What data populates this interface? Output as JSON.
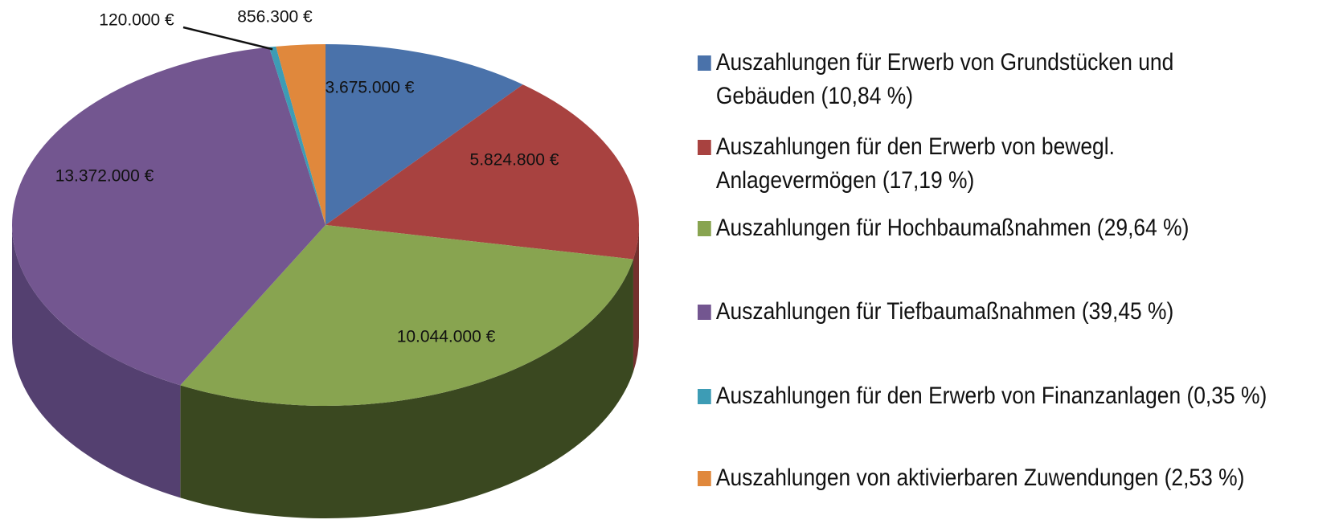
{
  "chart_data": {
    "type": "pie",
    "categories": [
      "Auszahlungen für Erwerb von Grundstücken und Gebäuden (10,84 %)",
      "Auszahlungen für den Erwerb von bewegl. Anlagevermögen (17,19 %)",
      "Auszahlungen für Hochbaumaßnahmen (29,64 %)",
      "Auszahlungen für Tiefbaumaßnahmen (39,45 %)",
      "Auszahlungen für den Erwerb von Finanzanlagen (0,35 %)",
      "Auszahlungen von aktivierbaren Zuwendungen (2,53 %)"
    ],
    "values": [
      3675000,
      5824800,
      10044000,
      13372000,
      120000,
      856300
    ],
    "value_labels": [
      "3.675.000 €",
      "5.824.800 €",
      "10.044.000 €",
      "13.372.000 €",
      "120.000 €",
      "856.300 €"
    ],
    "colors": [
      "#4a72aa",
      "#a84240",
      "#88a450",
      "#735690",
      "#3d9cb5",
      "#e0883c"
    ],
    "side_colors": [
      "#34507a",
      "#75302e",
      "#3a4820",
      "#544070",
      "#2a6e80",
      "#a0602a"
    ],
    "legend": "right"
  }
}
